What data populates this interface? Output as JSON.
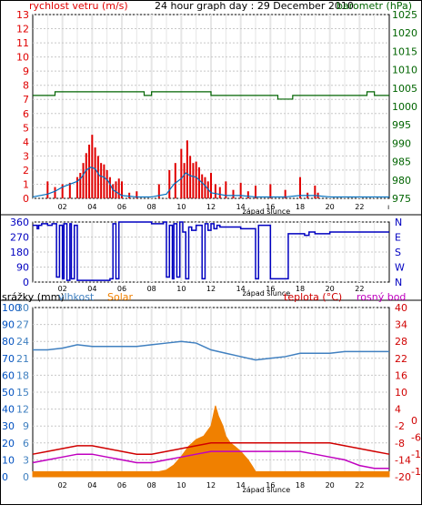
{
  "page": {
    "title": "24 hour graph day : 29 December 2010"
  },
  "colors": {
    "wind": "#e00000",
    "gust": "#0070c0",
    "pressure": "#006400",
    "direction": "#0000c0",
    "rain": "#0050c0",
    "humidity": "#4080c0",
    "solar": "#f08000",
    "temperature": "#d00000",
    "dewpoint": "#c000c0",
    "grid": "#c8c8c8",
    "frame": "#000000"
  },
  "chart_data": [
    {
      "type": "line",
      "label_left": "rychlost vetru (m/s)",
      "label_right": "barometr (hPa)",
      "x_ticks": [
        "02",
        "04",
        "06",
        "08",
        "10",
        "12",
        "14",
        "16",
        "18",
        "20",
        "22"
      ],
      "x_note": "západ slunce",
      "left_ticks": [
        "0",
        "1",
        "2",
        "3",
        "4",
        "5",
        "6",
        "7",
        "8",
        "9",
        "10",
        "11",
        "12",
        "13"
      ],
      "right_ticks": [
        "975",
        "980",
        "985",
        "990",
        "995",
        "1000",
        "1005",
        "1010",
        "1015",
        "1020",
        "1025"
      ],
      "left_range": [
        0,
        13
      ],
      "right_range": [
        975,
        1025
      ],
      "series": [
        {
          "key": "wind",
          "axis": "left",
          "style": "bars",
          "x": [
            1.0,
            1.5,
            2.0,
            2.5,
            3.0,
            3.2,
            3.4,
            3.6,
            3.8,
            4.0,
            4.2,
            4.4,
            4.6,
            4.8,
            5.0,
            5.2,
            5.4,
            5.6,
            5.8,
            6.0,
            6.5,
            7.0,
            8.5,
            9.2,
            9.6,
            10.0,
            10.2,
            10.4,
            10.6,
            10.8,
            11.0,
            11.2,
            11.4,
            11.6,
            11.8,
            12.0,
            12.3,
            12.6,
            13.0,
            13.5,
            14.0,
            14.5,
            15.0,
            16.0,
            17.0,
            18.0,
            18.5,
            19.0,
            19.2
          ],
          "values": [
            1.2,
            0.8,
            1.0,
            1.1,
            1.5,
            1.8,
            2.5,
            3.2,
            3.8,
            4.5,
            3.6,
            3.0,
            2.5,
            2.4,
            2.0,
            1.5,
            1.0,
            1.2,
            1.4,
            1.2,
            0.4,
            0.5,
            1.0,
            2.0,
            2.5,
            3.5,
            2.5,
            4.1,
            3.0,
            2.5,
            2.6,
            2.2,
            1.7,
            1.5,
            1.2,
            1.8,
            1.0,
            0.8,
            1.2,
            0.6,
            1.1,
            0.5,
            0.9,
            1.0,
            0.6,
            1.5,
            0.4,
            0.9,
            0.4
          ]
        },
        {
          "key": "gust",
          "axis": "left",
          "style": "line",
          "x": [
            0,
            1,
            1.5,
            2,
            2.5,
            3,
            3.3,
            3.6,
            3.9,
            4.2,
            4.5,
            4.8,
            5.1,
            5.4,
            6,
            7,
            8,
            9,
            9.5,
            10,
            10.3,
            10.6,
            11,
            11.3,
            11.6,
            12,
            12.5,
            13,
            14,
            15,
            16,
            17,
            18,
            19,
            20,
            21,
            22,
            23,
            24
          ],
          "values": [
            0.1,
            0.3,
            0.5,
            0.8,
            1.0,
            1.2,
            1.5,
            2.0,
            2.2,
            2.1,
            1.6,
            1.5,
            1.2,
            0.6,
            0.2,
            0.1,
            0.1,
            0.3,
            1.0,
            1.4,
            1.8,
            1.6,
            1.5,
            1.2,
            0.9,
            0.4,
            0.3,
            0.2,
            0.2,
            0.1,
            0.1,
            0.1,
            0.2,
            0.2,
            0.1,
            0.1,
            0.1,
            0.1,
            0.1
          ]
        },
        {
          "key": "pressure",
          "axis": "right",
          "style": "step",
          "x": [
            0,
            1.5,
            1.5,
            7.5,
            7.5,
            8.0,
            8.0,
            12.0,
            12.0,
            16.5,
            16.5,
            17.5,
            17.5,
            22.5,
            22.5,
            23.0,
            23.0,
            24.0
          ],
          "values": [
            1003,
            1003,
            1004,
            1004,
            1003,
            1003,
            1004,
            1004,
            1003,
            1003,
            1002,
            1002,
            1003,
            1003,
            1004,
            1004,
            1003,
            1003
          ]
        }
      ]
    },
    {
      "type": "line",
      "label_left_ticks": [
        "0",
        "90",
        "180",
        "270",
        "360"
      ],
      "label_right_ticks": [
        "N",
        "W",
        "S",
        "E",
        "N"
      ],
      "left_range": [
        0,
        360
      ],
      "x_ticks": [
        "02",
        "04",
        "06",
        "08",
        "10",
        "12",
        "14",
        "16",
        "18",
        "20",
        "22"
      ],
      "x_note": "západ slunce",
      "series": [
        {
          "key": "direction",
          "x": [
            0,
            0.3,
            0.4,
            0.6,
            1.0,
            1.3,
            1.6,
            1.8,
            2.0,
            2.1,
            2.3,
            2.5,
            2.6,
            2.8,
            3.0,
            4.0,
            5.0,
            5.2,
            5.4,
            5.6,
            5.8,
            6.0,
            7.0,
            8.0,
            8.8,
            9.0,
            9.2,
            9.4,
            9.5,
            9.7,
            9.9,
            10.1,
            10.3,
            10.5,
            10.7,
            11.0,
            11.2,
            11.4,
            11.6,
            11.8,
            12.0,
            12.2,
            12.4,
            12.6,
            13.0,
            14.0,
            15.0,
            15.2,
            16.0,
            17.0,
            17.2,
            18.0,
            18.3,
            18.6,
            19.0,
            20.0,
            22.0,
            24.0
          ],
          "values": [
            340,
            320,
            340,
            350,
            340,
            350,
            30,
            340,
            20,
            350,
            10,
            350,
            20,
            340,
            10,
            10,
            10,
            20,
            350,
            20,
            360,
            360,
            360,
            350,
            360,
            30,
            340,
            20,
            350,
            30,
            360,
            300,
            20,
            330,
            310,
            340,
            340,
            20,
            350,
            310,
            350,
            320,
            340,
            330,
            330,
            320,
            20,
            340,
            20,
            20,
            290,
            290,
            280,
            300,
            290,
            300,
            300,
            300
          ]
        }
      ]
    },
    {
      "type": "line",
      "labels": [
        "srážky (mm)",
        "vlhkost",
        "Solar",
        "teplota (°C)",
        "rosný bod"
      ],
      "x_ticks": [
        "02",
        "04",
        "06",
        "08",
        "10",
        "12",
        "14",
        "16",
        "18",
        "20",
        "22"
      ],
      "x_note": "západ slunce",
      "rain_ticks": [
        "0",
        "10",
        "20",
        "30",
        "40",
        "50",
        "60",
        "70",
        "80",
        "90",
        "100"
      ],
      "humidity_ticks": [
        "0",
        "3",
        "6",
        "9",
        "12",
        "15",
        "18",
        "21",
        "24",
        "27",
        "30"
      ],
      "temp_ticks": [
        "-20",
        "-14",
        "-8",
        "-2",
        "4",
        "10",
        "16",
        "22",
        "28",
        "34",
        "40"
      ],
      "temp_ticks_extra": [
        "-18",
        "-12",
        "-6",
        "0"
      ],
      "temp_range": [
        -20,
        40
      ],
      "humidity_range": [
        0,
        100
      ],
      "series": [
        {
          "key": "humidity",
          "x": [
            0,
            1,
            2,
            3,
            4,
            5,
            6,
            7,
            8,
            9,
            10,
            11,
            12,
            13,
            14,
            15,
            16,
            17,
            18,
            19,
            20,
            21,
            22,
            23,
            24
          ],
          "values": [
            75,
            75,
            76,
            78,
            77,
            77,
            77,
            77,
            78,
            79,
            80,
            79,
            75,
            73,
            71,
            69,
            70,
            71,
            73,
            73,
            73,
            74,
            74,
            74,
            74
          ]
        },
        {
          "key": "temperature",
          "x": [
            0,
            1,
            2,
            3,
            4,
            5,
            6,
            7,
            8,
            9,
            10,
            11,
            12,
            13,
            14,
            15,
            16,
            17,
            18,
            19,
            20,
            21,
            22,
            23,
            24
          ],
          "values": [
            -12,
            -11,
            -10,
            -9,
            -9,
            -10,
            -11,
            -12,
            -12,
            -11,
            -10,
            -9,
            -8,
            -8,
            -8,
            -8,
            -8,
            -8,
            -8,
            -8,
            -8,
            -9,
            -10,
            -11,
            -12
          ]
        },
        {
          "key": "dewpoint",
          "x": [
            0,
            1,
            2,
            3,
            4,
            5,
            6,
            7,
            8,
            9,
            10,
            11,
            12,
            13,
            14,
            15,
            16,
            17,
            18,
            19,
            20,
            21,
            22,
            23,
            24
          ],
          "values": [
            -15,
            -14,
            -13,
            -12,
            -12,
            -13,
            -14,
            -15,
            -15,
            -14,
            -13,
            -12,
            -11,
            -11,
            -11,
            -11,
            -11,
            -11,
            -11,
            -12,
            -13,
            -14,
            -16,
            -17,
            -17
          ]
        },
        {
          "key": "solar",
          "style": "area",
          "x": [
            0,
            8.5,
            9.0,
            9.5,
            10.0,
            10.5,
            11.0,
            11.5,
            12.0,
            12.3,
            12.5,
            12.8,
            13.0,
            13.3,
            13.6,
            14.0,
            14.3,
            14.5,
            14.8,
            15.0,
            24.0
          ],
          "values": [
            3,
            3,
            4,
            7,
            12,
            18,
            22,
            24,
            30,
            42,
            36,
            30,
            24,
            20,
            18,
            15,
            12,
            10,
            6,
            3,
            3
          ]
        }
      ]
    }
  ]
}
